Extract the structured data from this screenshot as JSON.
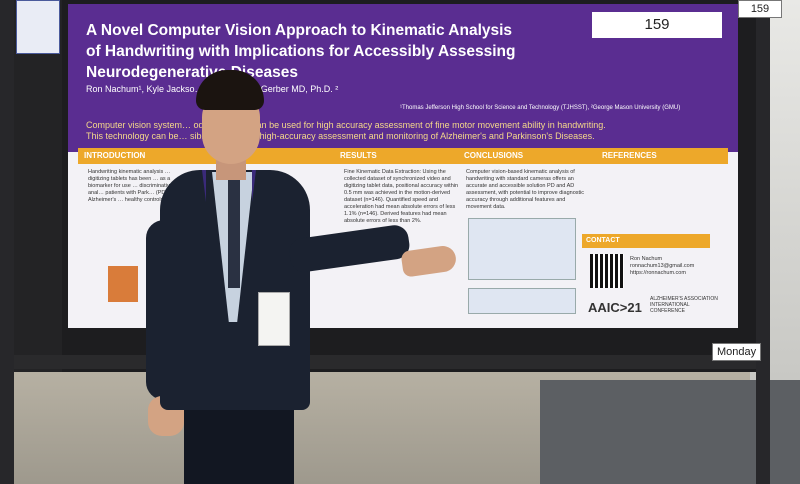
{
  "poster": {
    "number": "159",
    "title_line1": "A Novel Computer Vision Approach to Kinematic Analysis",
    "title_line2": "of Handwriting with Implications for Accessibly Assessing",
    "title_line3": "Neurodegenerative Diseases",
    "authors": "Ron Nachum¹, Kyle Jackso…  Ph.D. ², Lynn Gerber MD, Ph.D. ²",
    "affiliations": "¹Thomas Jefferson High School for Science and Technology (TJHSST), ²George Mason University (GMU)",
    "summary_line1": "Computer vision system… odity cameras can be used for high accuracy assessment of fine motor movement ability in handwriting.",
    "summary_line2": "This technology can be… sible systems for high-accuracy assessment and monitoring of Alzheimer's and Parkinson's Diseases.",
    "sections": {
      "intro": "INTRODUCTION",
      "results": "RESULTS",
      "conclusions": "CONCLUSIONS",
      "references": "REFERENCES",
      "contact": "CONTACT"
    },
    "intro_text": "Handwriting kinematic analysis … digitizing tablets has been … as a biomarker for use … discriminative anal… patients with Park… (PD), Alzheimer's … healthy controls (P…",
    "results_text": "Fine Kinematic Data Extraction: Using the collected dataset of synchronized video and digitizing tablet data, positional accuracy within 0.5 mm was achieved in the motion-derived dataset (n=146). Quantified speed and acceleration had mean absolute errors of less 1.1% (n=146). Derived features had mean absolute errors of less than 2%.",
    "conclusions_text": "Computer vision-based kinematic analysis of handwriting with standard cameras offers an accurate and accessible solution PD and AD assessment, with potential to improve diagnostic accuracy through additional features and movement data.",
    "contact_name": "Ron Nachum",
    "contact_email": "ronnachum13@gmail.com",
    "contact_site": "https://ronnachum.com",
    "conference_logo": "AAIC>21",
    "conference_sub": "ALZHEIMER'S ASSOCIATION INTERNATIONAL CONFERENCE"
  },
  "board_tag_number": "159",
  "day_tag": "Monday"
}
